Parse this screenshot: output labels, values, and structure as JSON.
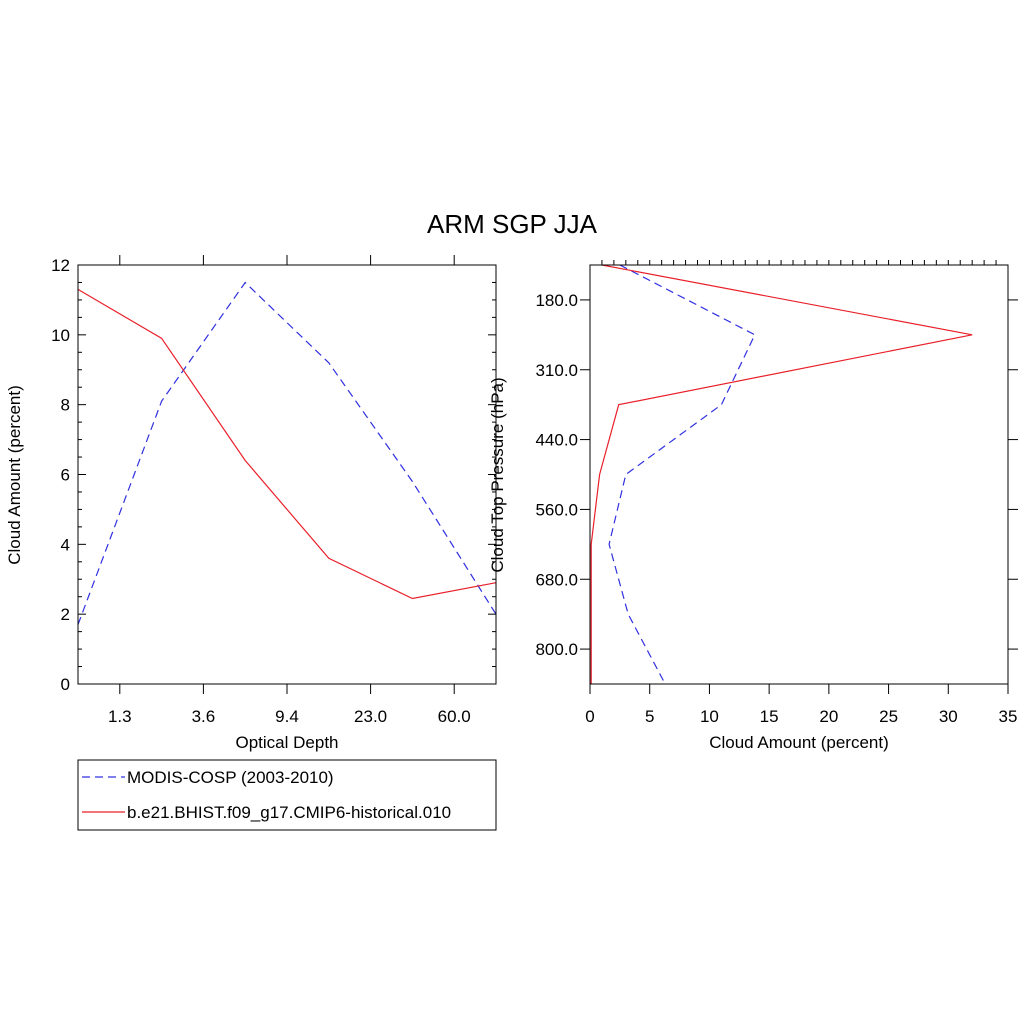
{
  "title": "ARM SGP JJA",
  "colors": {
    "obs": "#3030e0",
    "model": "#e8202a"
  },
  "legend": [
    {
      "label": "MODIS-COSP (2003-2010)",
      "style": "dashed",
      "color": "#3030e0"
    },
    {
      "label": "b.e21.BHIST.f09_g17.CMIP6-historical.010",
      "style": "solid",
      "color": "#e8202a"
    }
  ],
  "chart_data": [
    {
      "type": "line",
      "xlabel": "Optical Depth",
      "ylabel": "Cloud Amount (percent)",
      "ylim": [
        0,
        12
      ],
      "yticks": [
        "0",
        "2",
        "4",
        "6",
        "8",
        "10",
        "12"
      ],
      "xticklabels": [
        "1.3",
        "3.6",
        "9.4",
        "23.0",
        "60.0"
      ],
      "x_bin_index": [
        0,
        1,
        2,
        3,
        4,
        5
      ],
      "series": [
        {
          "name": "MODIS-COSP (2003-2010)",
          "values": [
            1.7,
            8.1,
            11.5,
            9.2,
            5.8,
            2.0
          ]
        },
        {
          "name": "b.e21.BHIST.f09_g17.CMIP6-historical.010",
          "values": [
            11.3,
            9.9,
            6.4,
            3.6,
            2.45,
            2.9
          ]
        }
      ]
    },
    {
      "type": "line",
      "xlabel": "Cloud Amount (percent)",
      "ylabel": "Cloud Top Pressure (hPa)",
      "xlim": [
        0,
        35
      ],
      "xticks": [
        "0",
        "5",
        "10",
        "15",
        "20",
        "25",
        "30",
        "35"
      ],
      "yticklabels": [
        "180.0",
        "310.0",
        "440.0",
        "560.0",
        "680.0",
        "800.0"
      ],
      "y_level_index": [
        0,
        1,
        2,
        3,
        4,
        5,
        6
      ],
      "series": [
        {
          "name": "MODIS-COSP (2003-2010)",
          "values": [
            2.5,
            13.8,
            11.0,
            3.0,
            1.6,
            3.2,
            6.3
          ]
        },
        {
          "name": "b.e21.BHIST.f09_g17.CMIP6-historical.010",
          "values": [
            1.0,
            32.0,
            2.4,
            0.8,
            0.1,
            0.1,
            0.1
          ]
        }
      ]
    }
  ]
}
